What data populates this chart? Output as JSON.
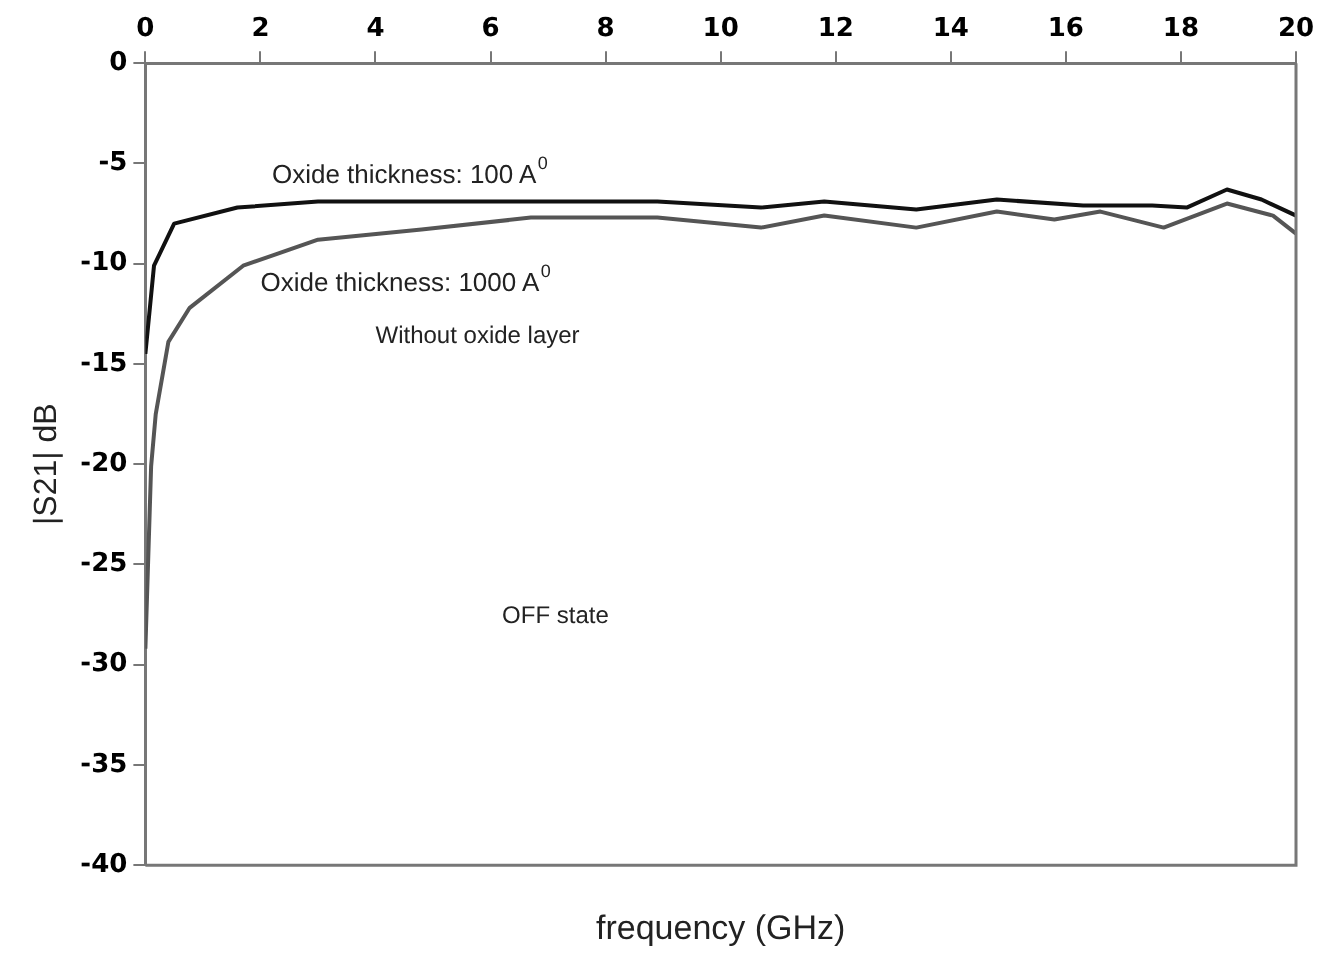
{
  "chart_data": {
    "type": "line",
    "xlabel": "frequency (GHz)",
    "ylabel": "|S21| dB",
    "xlim": [
      0,
      20
    ],
    "xticks": [
      0,
      2,
      4,
      6,
      8,
      10,
      12,
      14,
      16,
      18,
      20
    ],
    "ylim": [
      -40,
      0
    ],
    "yticks": [
      0,
      -5,
      -10,
      -15,
      -20,
      -25,
      -30,
      -35,
      -40
    ],
    "grid": false,
    "legend": false,
    "marker": "none",
    "line_style": "solid",
    "series": [
      {
        "name": "Oxide thickness: 100 A$^{0}$",
        "color": "#111111",
        "x": [
          0,
          0.15,
          0.5,
          1.6,
          3.0,
          8.9,
          10.7,
          11.8,
          13.4,
          14.8,
          16.3,
          17.5,
          18.1,
          18.8,
          19.4,
          20
        ],
        "values": [
          -14.5,
          -10.1,
          -8,
          -7.2,
          -6.9,
          -6.9,
          -7.2,
          -6.9,
          -7.3,
          -6.8,
          -7.1,
          -7.1,
          -7.2,
          -6.3,
          -6.8,
          -7.6
        ]
      },
      {
        "name": "Oxide thickness: 1000 A$^{0}$",
        "color": "#555555",
        "x": [
          0,
          0.1,
          0.18,
          0.4,
          0.77,
          1.7,
          3.0,
          4.8,
          6.7,
          8.9,
          10.7,
          11.8,
          13.4,
          14.8,
          15.8,
          16.6,
          17.7,
          18.8,
          19.6,
          20
        ],
        "values": [
          -29.2,
          -20.1,
          -17.5,
          -13.9,
          -12.2,
          -10.1,
          -8.8,
          -8.3,
          -7.7,
          -7.7,
          -8.2,
          -7.6,
          -8.2,
          -7.4,
          -7.8,
          -7.4,
          -8.2,
          -7.0,
          -7.6,
          -8.5
        ]
      }
    ],
    "annotations": [
      "Without oxide layer",
      "OFF state"
    ]
  }
}
